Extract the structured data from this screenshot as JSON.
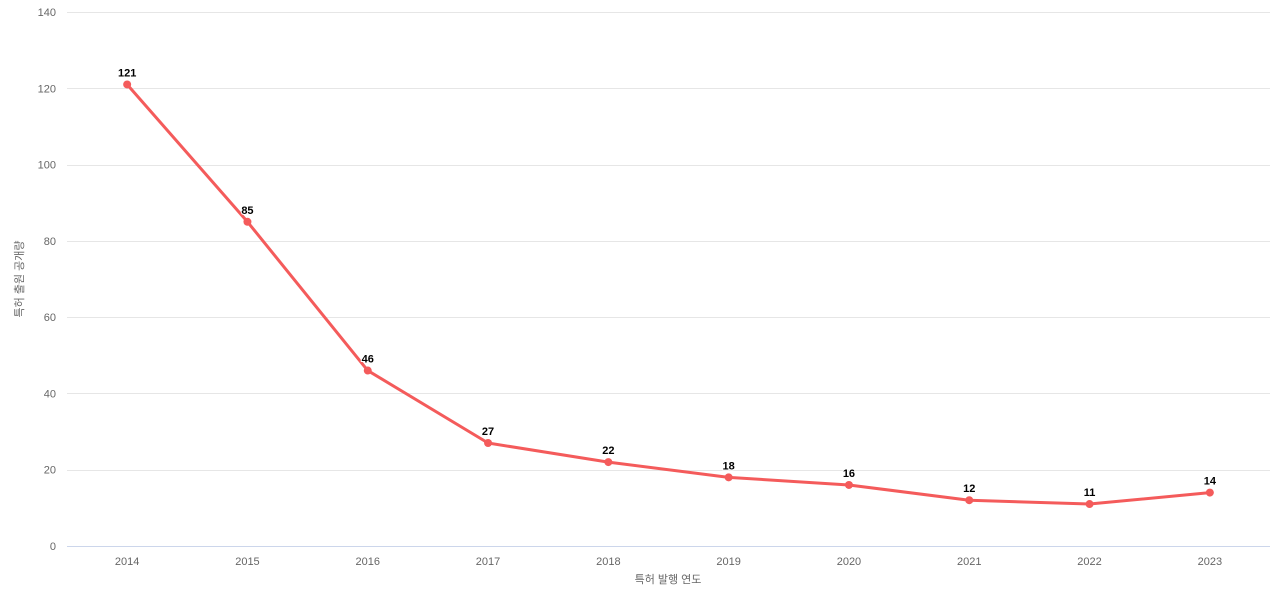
{
  "chart_data": {
    "type": "line",
    "categories": [
      "2014",
      "2015",
      "2016",
      "2017",
      "2018",
      "2019",
      "2020",
      "2021",
      "2022",
      "2023"
    ],
    "values": [
      121,
      85,
      46,
      27,
      22,
      18,
      16,
      12,
      11,
      14
    ],
    "title": "",
    "xlabel": "특허 발행 연도",
    "ylabel": "특허 출원 공개량",
    "ylim": [
      0,
      140
    ],
    "yticks": [
      0,
      20,
      40,
      60,
      80,
      100,
      120,
      140
    ],
    "grid": true,
    "legend_position": "none",
    "data_labels_shown": true,
    "colors": {
      "line": "#f45b5b",
      "marker": "#f45b5b",
      "grid_line": "#e6e6e6",
      "axis_line": "#ccd6eb",
      "tick_label": "#666666",
      "axis_title": "#666666",
      "data_label": "#000000",
      "background": "#ffffff"
    }
  }
}
